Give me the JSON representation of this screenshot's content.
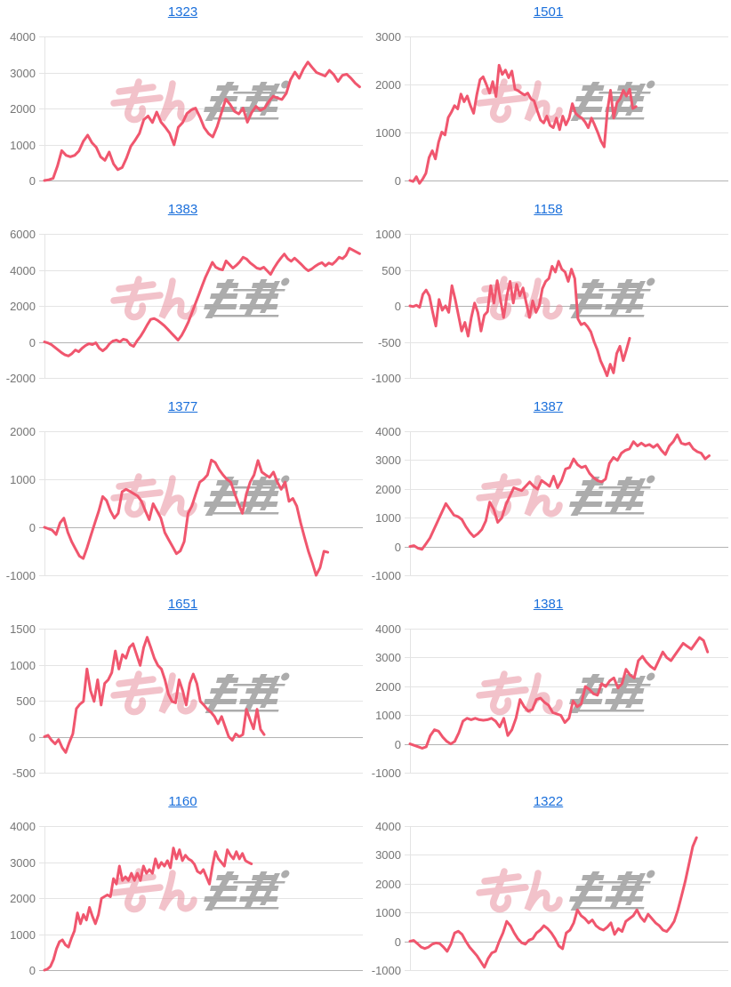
{
  "page": {
    "background": "#ffffff",
    "title_link_color": "#1a6fdb"
  },
  "watermark": {
    "text": "みんレポ",
    "pink_color": "#e8919f",
    "gray_color": "#9e9e9e"
  },
  "style": {
    "line_color": "#f0566e",
    "grid_color": "#e4e4e4",
    "zero_line_color": "#b3b3b3",
    "tick_label_color": "#757575"
  },
  "chart_data": [
    {
      "title": "1323",
      "type": "line",
      "legend": "none",
      "grid": true,
      "xlabel": "",
      "ylabel": "",
      "y_ticks": [
        4000,
        3000,
        2000,
        1000,
        0
      ],
      "ylim": [
        0,
        4000
      ],
      "x_end_frac": 0.99,
      "values": [
        0,
        20,
        60,
        400,
        830,
        700,
        660,
        700,
        820,
        1090,
        1260,
        1050,
        920,
        660,
        560,
        790,
        460,
        300,
        360,
        620,
        950,
        1120,
        1310,
        1690,
        1790,
        1610,
        1900,
        1620,
        1480,
        1310,
        990,
        1480,
        1610,
        1860,
        1960,
        2010,
        1760,
        1470,
        1300,
        1210,
        1500,
        1890,
        2260,
        2110,
        1920,
        1850,
        2010,
        1620,
        1890,
        2060,
        1950,
        2010,
        2200,
        2340,
        2290,
        2250,
        2420,
        2800,
        3010,
        2840,
        3100,
        3290,
        3140,
        3000,
        2950,
        2900,
        3060,
        2940,
        2750,
        2920,
        2950,
        2840,
        2700,
        2600
      ]
    },
    {
      "title": "1501",
      "type": "line",
      "legend": "none",
      "grid": true,
      "xlabel": "",
      "ylabel": "",
      "y_ticks": [
        3000,
        2000,
        1000,
        0
      ],
      "ylim": [
        0,
        3000
      ],
      "x_end_frac": 0.71,
      "values": [
        0,
        -20,
        80,
        -60,
        30,
        150,
        480,
        620,
        450,
        800,
        1010,
        950,
        1310,
        1420,
        1560,
        1490,
        1800,
        1640,
        1760,
        1560,
        1400,
        1790,
        2100,
        2160,
        2000,
        1820,
        2060,
        1750,
        2400,
        2210,
        2300,
        2140,
        2280,
        1900,
        1870,
        1820,
        1780,
        1820,
        1700,
        1660,
        1450,
        1260,
        1200,
        1340,
        1150,
        1100,
        1300,
        1060,
        1340,
        1160,
        1300,
        1600,
        1400,
        1340,
        1300,
        1220,
        1100,
        1300,
        1160,
        1000,
        820,
        700,
        1450,
        1880,
        1300,
        1620,
        1700,
        1880,
        1760,
        1900,
        1500,
        1540
      ]
    },
    {
      "title": "1383",
      "type": "line",
      "legend": "none",
      "grid": true,
      "xlabel": "",
      "ylabel": "",
      "y_ticks": [
        6000,
        4000,
        2000,
        0,
        -2000
      ],
      "ylim": [
        -2000,
        6000
      ],
      "x_end_frac": 0.99,
      "values": [
        0,
        -60,
        -150,
        -300,
        -450,
        -600,
        -720,
        -780,
        -650,
        -450,
        -550,
        -350,
        -200,
        -100,
        -150,
        -50,
        -350,
        -500,
        -350,
        -100,
        50,
        100,
        0,
        150,
        100,
        -150,
        -250,
        50,
        300,
        600,
        950,
        1250,
        1300,
        1200,
        1050,
        900,
        700,
        500,
        300,
        100,
        350,
        700,
        1100,
        1600,
        2100,
        2600,
        3100,
        3600,
        4000,
        4420,
        4150,
        4050,
        4000,
        4500,
        4300,
        4100,
        4250,
        4450,
        4700,
        4600,
        4400,
        4250,
        4100,
        4050,
        4150,
        3950,
        3750,
        4100,
        4400,
        4650,
        4880,
        4620,
        4480,
        4650,
        4480,
        4300,
        4100,
        3950,
        4050,
        4200,
        4320,
        4400,
        4220,
        4380,
        4300,
        4480,
        4700,
        4620,
        4800,
        5200,
        5100,
        5000,
        4900
      ]
    },
    {
      "title": "1158",
      "type": "line",
      "legend": "none",
      "grid": true,
      "xlabel": "",
      "ylabel": "",
      "y_ticks": [
        1000,
        500,
        0,
        -500,
        -1000
      ],
      "ylim": [
        -1000,
        1000
      ],
      "x_end_frac": 0.69,
      "values": [
        0,
        -10,
        10,
        -20,
        160,
        220,
        140,
        -80,
        -280,
        90,
        -60,
        0,
        -90,
        280,
        90,
        -130,
        -350,
        -230,
        -420,
        -160,
        40,
        -90,
        -350,
        -130,
        -80,
        280,
        40,
        350,
        90,
        -160,
        140,
        340,
        40,
        300,
        140,
        250,
        40,
        -160,
        70,
        -90,
        0,
        240,
        340,
        380,
        550,
        470,
        620,
        510,
        470,
        340,
        510,
        380,
        -180,
        -260,
        -240,
        -290,
        -360,
        -500,
        -610,
        -760,
        -860,
        -970,
        -810,
        -930,
        -660,
        -560,
        -760,
        -610,
        -450
      ]
    },
    {
      "title": "1377",
      "type": "line",
      "legend": "none",
      "grid": true,
      "xlabel": "",
      "ylabel": "",
      "y_ticks": [
        2000,
        1000,
        0,
        -1000
      ],
      "ylim": [
        -1000,
        2000
      ],
      "x_end_frac": 0.89,
      "values": [
        0,
        -30,
        -60,
        -150,
        90,
        190,
        -100,
        -300,
        -450,
        -600,
        -650,
        -420,
        -160,
        90,
        340,
        640,
        560,
        340,
        190,
        290,
        740,
        790,
        750,
        700,
        650,
        540,
        340,
        160,
        490,
        340,
        190,
        -110,
        -260,
        -400,
        -550,
        -490,
        -300,
        290,
        450,
        700,
        940,
        1000,
        1090,
        1400,
        1350,
        1200,
        1090,
        1000,
        940,
        700,
        490,
        290,
        690,
        940,
        1090,
        1390,
        1150,
        1090,
        1040,
        1150,
        940,
        790,
        940,
        540,
        600,
        440,
        90,
        -210,
        -500,
        -740,
        -1000,
        -840,
        -500,
        -520
      ]
    },
    {
      "title": "1387",
      "type": "line",
      "legend": "none",
      "grid": true,
      "xlabel": "",
      "ylabel": "",
      "y_ticks": [
        4000,
        3000,
        2000,
        1000,
        0,
        -1000
      ],
      "ylim": [
        -1000,
        4000
      ],
      "x_end_frac": 0.94,
      "values": [
        0,
        30,
        -60,
        -100,
        90,
        290,
        590,
        890,
        1190,
        1490,
        1290,
        1090,
        1040,
        940,
        690,
        490,
        340,
        440,
        590,
        890,
        1540,
        1290,
        840,
        990,
        1440,
        1740,
        2040,
        1990,
        1940,
        2090,
        2240,
        2090,
        1990,
        2290,
        2190,
        2090,
        2440,
        2040,
        2290,
        2690,
        2740,
        3040,
        2840,
        2740,
        2790,
        2540,
        2390,
        2290,
        2240,
        2340,
        2890,
        3090,
        2990,
        3240,
        3340,
        3390,
        3640,
        3490,
        3590,
        3490,
        3540,
        3440,
        3540,
        3340,
        3190,
        3490,
        3640,
        3880,
        3590,
        3540,
        3590,
        3390,
        3290,
        3240,
        3040,
        3150
      ]
    },
    {
      "title": "1651",
      "type": "line",
      "legend": "none",
      "grid": true,
      "xlabel": "",
      "ylabel": "",
      "y_ticks": [
        1500,
        1000,
        500,
        0,
        -500
      ],
      "ylim": [
        -500,
        1500
      ],
      "x_end_frac": 0.69,
      "values": [
        0,
        20,
        -50,
        -100,
        -40,
        -150,
        -220,
        -80,
        40,
        390,
        450,
        490,
        940,
        640,
        490,
        790,
        440,
        740,
        790,
        890,
        1190,
        940,
        1140,
        1090,
        1240,
        1290,
        1140,
        990,
        1240,
        1380,
        1240,
        1090,
        990,
        940,
        790,
        590,
        490,
        470,
        790,
        640,
        440,
        740,
        870,
        740,
        490,
        440,
        380,
        340,
        280,
        180,
        280,
        140,
        0,
        -50,
        40,
        0,
        30,
        380,
        240,
        110,
        380,
        100,
        30
      ]
    },
    {
      "title": "1381",
      "type": "line",
      "legend": "none",
      "grid": true,
      "xlabel": "",
      "ylabel": "",
      "y_ticks": [
        4000,
        3000,
        2000,
        1000,
        0,
        -1000
      ],
      "ylim": [
        -1000,
        4000
      ],
      "x_end_frac": 0.935,
      "values": [
        0,
        -50,
        -100,
        -150,
        -100,
        290,
        490,
        440,
        240,
        90,
        0,
        90,
        390,
        790,
        890,
        840,
        890,
        840,
        820,
        840,
        890,
        790,
        590,
        890,
        290,
        490,
        890,
        1540,
        1290,
        1140,
        1190,
        1540,
        1590,
        1440,
        1340,
        1090,
        1040,
        990,
        740,
        890,
        1490,
        1290,
        1390,
        1990,
        1890,
        1740,
        1690,
        2090,
        1990,
        2190,
        2290,
        1940,
        2090,
        2590,
        2390,
        2290,
        2890,
        3040,
        2840,
        2690,
        2590,
        2890,
        3190,
        2990,
        2890,
        3090,
        3290,
        3490,
        3390,
        3290,
        3490,
        3690,
        3590,
        3190
      ]
    },
    {
      "title": "1160",
      "type": "line",
      "legend": "none",
      "grid": true,
      "xlabel": "",
      "ylabel": "",
      "y_ticks": [
        4000,
        3000,
        2000,
        1000,
        0
      ],
      "ylim": [
        0,
        4000
      ],
      "x_end_frac": 0.65,
      "values": [
        0,
        30,
        100,
        290,
        590,
        790,
        840,
        700,
        640,
        890,
        1090,
        1590,
        1290,
        1540,
        1390,
        1740,
        1490,
        1290,
        1540,
        1990,
        2040,
        2090,
        2040,
        2540,
        2390,
        2890,
        2490,
        2590,
        2490,
        2690,
        2490,
        2690,
        2490,
        2890,
        2690,
        2790,
        2690,
        3090,
        2840,
        2990,
        2890,
        3040,
        2840,
        3390,
        3090,
        3340,
        3040,
        3190,
        3090,
        3040,
        2940,
        2740,
        2690,
        2790,
        2590,
        2390,
        2890,
        3290,
        3090,
        2990,
        2890,
        3340,
        3190,
        3090,
        3290,
        3090,
        3240,
        3040,
        2990,
        2950
      ]
    },
    {
      "title": "1322",
      "type": "line",
      "legend": "none",
      "grid": true,
      "xlabel": "",
      "ylabel": "",
      "y_ticks": [
        4000,
        3000,
        2000,
        1000,
        0,
        -1000
      ],
      "ylim": [
        -1000,
        4000
      ],
      "x_end_frac": 0.9,
      "values": [
        0,
        30,
        -80,
        -200,
        -250,
        -200,
        -100,
        -60,
        -80,
        -200,
        -350,
        -100,
        290,
        350,
        240,
        0,
        -200,
        -350,
        -500,
        -700,
        -900,
        -600,
        -400,
        -350,
        0,
        290,
        690,
        540,
        290,
        90,
        -50,
        -100,
        40,
        90,
        290,
        390,
        540,
        440,
        290,
        90,
        -160,
        -260,
        290,
        390,
        640,
        1090,
        890,
        790,
        640,
        740,
        540,
        440,
        390,
        490,
        640,
        240,
        440,
        340,
        690,
        790,
        890,
        1090,
        840,
        690,
        940,
        790,
        640,
        540,
        390,
        340,
        490,
        690,
        1090,
        1590,
        2090,
        2690,
        3290,
        3600
      ]
    }
  ]
}
